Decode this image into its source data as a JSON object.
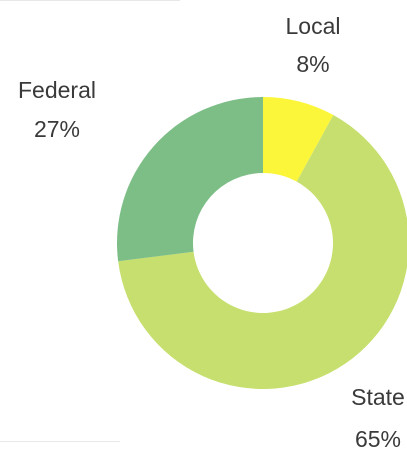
{
  "chart_data": {
    "type": "pie",
    "donut": true,
    "title": "",
    "slices": [
      {
        "label": "Local",
        "value": 8,
        "display": "8%",
        "color": "#fbf63a"
      },
      {
        "label": "State",
        "value": 65,
        "display": "65%",
        "color": "#c6df6e"
      },
      {
        "label": "Federal",
        "value": 27,
        "display": "27%",
        "color": "#7dbe87"
      }
    ],
    "start_angle_deg": 0,
    "direction": "clockwise",
    "legend": "none",
    "labels": "outside"
  }
}
